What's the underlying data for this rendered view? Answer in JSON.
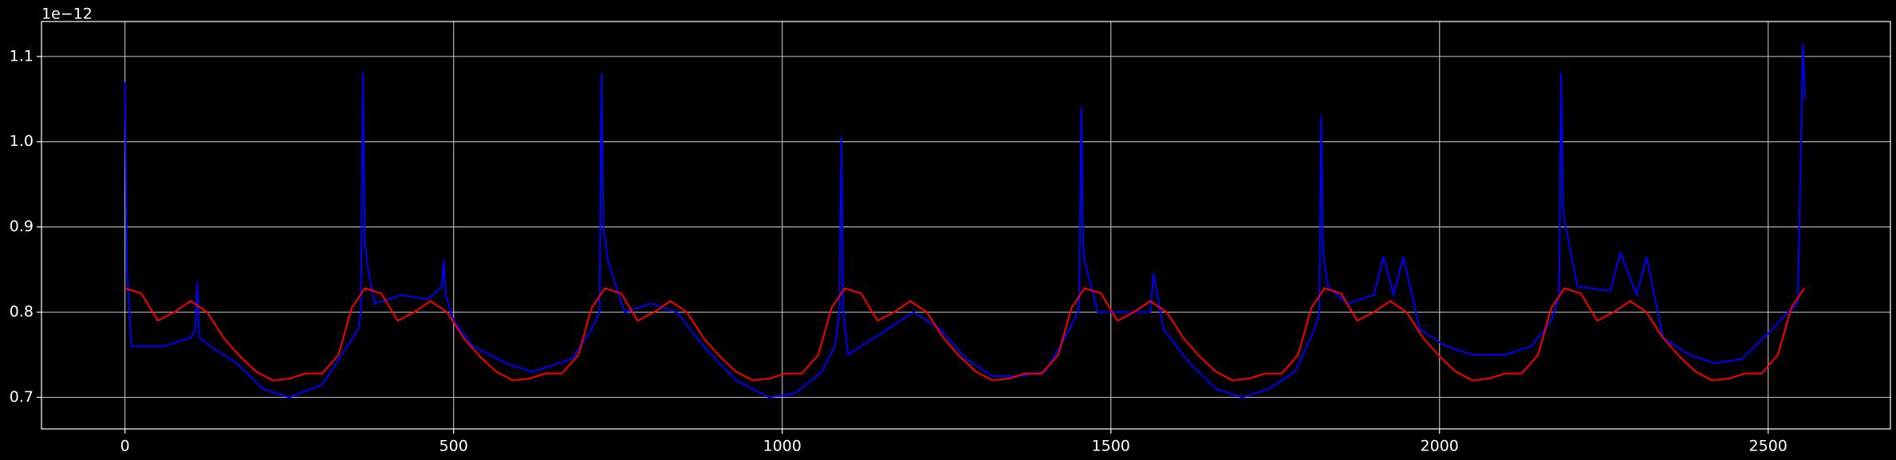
{
  "chart_data": {
    "type": "line",
    "offset_label": "1e−12",
    "xlim": [
      -127,
      2686
    ],
    "ylim": [
      0.663,
      1.141
    ],
    "xticks": [
      0,
      500,
      1000,
      1500,
      2000,
      2500
    ],
    "yticks": [
      0.7,
      0.8,
      0.9,
      {
        "value": 1,
        "label": "1.0"
      },
      1.1
    ],
    "grid": true,
    "series": [
      {
        "color": "#0000ff",
        "x": [
          0,
          3,
          10,
          60,
          100,
          107,
          110,
          113,
          130,
          170,
          210,
          250,
          300,
          330,
          355,
          359,
          362,
          365,
          370,
          380,
          420,
          460,
          482,
          485,
          488,
          500,
          530,
          580,
          620,
          680,
          710,
          722,
          725,
          728,
          735,
          760,
          800,
          840,
          880,
          930,
          980,
          1020,
          1060,
          1080,
          1087,
          1090,
          1093,
          1100,
          1130,
          1170,
          1200,
          1240,
          1280,
          1320,
          1360,
          1400,
          1430,
          1450,
          1452,
          1455,
          1458,
          1460,
          1480,
          1520,
          1560,
          1565,
          1580,
          1620,
          1660,
          1700,
          1740,
          1780,
          1810,
          1817,
          1820,
          1823,
          1830,
          1860,
          1900,
          1915,
          1930,
          1945,
          1970,
          2010,
          2050,
          2100,
          2140,
          2170,
          2182,
          2185,
          2188,
          2192,
          2210,
          2260,
          2275,
          2300,
          2315,
          2340,
          2380,
          2420,
          2460,
          2500,
          2530,
          2545,
          2553,
          2556
        ],
        "values": [
          1.07,
          0.85,
          0.76,
          0.76,
          0.77,
          0.78,
          0.835,
          0.77,
          0.76,
          0.74,
          0.71,
          0.7,
          0.715,
          0.75,
          0.78,
          0.8,
          1.08,
          0.88,
          0.85,
          0.81,
          0.82,
          0.815,
          0.83,
          0.86,
          0.82,
          0.79,
          0.76,
          0.74,
          0.73,
          0.745,
          0.78,
          0.8,
          1.08,
          0.9,
          0.86,
          0.8,
          0.81,
          0.8,
          0.76,
          0.72,
          0.7,
          0.705,
          0.73,
          0.76,
          0.8,
          1.005,
          0.8,
          0.75,
          0.765,
          0.785,
          0.8,
          0.78,
          0.745,
          0.725,
          0.725,
          0.73,
          0.77,
          0.8,
          0.82,
          1.04,
          0.88,
          0.86,
          0.8,
          0.8,
          0.8,
          0.845,
          0.78,
          0.74,
          0.71,
          0.7,
          0.71,
          0.73,
          0.78,
          0.8,
          1.03,
          0.87,
          0.83,
          0.81,
          0.82,
          0.865,
          0.82,
          0.865,
          0.78,
          0.76,
          0.75,
          0.75,
          0.76,
          0.79,
          0.82,
          1.08,
          0.92,
          0.9,
          0.83,
          0.825,
          0.87,
          0.82,
          0.865,
          0.77,
          0.75,
          0.74,
          0.745,
          0.775,
          0.8,
          0.81,
          1.115,
          1.05
        ]
      },
      {
        "color": "#ff0000",
        "x": [
          0,
          25,
          50,
          75,
          100,
          125,
          150,
          175,
          200,
          225,
          250,
          275,
          300,
          325,
          345,
          365,
          390,
          415,
          440,
          465,
          490,
          515,
          540,
          565,
          590,
          615,
          640,
          665,
          690,
          710,
          730,
          755,
          780,
          805,
          830,
          855,
          880,
          905,
          930,
          955,
          980,
          1005,
          1030,
          1055,
          1075,
          1095,
          1120,
          1145,
          1170,
          1195,
          1220,
          1245,
          1270,
          1295,
          1320,
          1345,
          1370,
          1395,
          1420,
          1440,
          1460,
          1485,
          1510,
          1535,
          1560,
          1585,
          1610,
          1635,
          1660,
          1685,
          1710,
          1735,
          1760,
          1785,
          1805,
          1825,
          1850,
          1875,
          1900,
          1925,
          1950,
          1975,
          2000,
          2025,
          2050,
          2075,
          2100,
          2125,
          2150,
          2170,
          2190,
          2215,
          2240,
          2265,
          2290,
          2315,
          2340,
          2365,
          2390,
          2415,
          2440,
          2465,
          2490,
          2515,
          2535,
          2555
        ],
        "values": [
          0.828,
          0.822,
          0.79,
          0.8,
          0.813,
          0.8,
          0.77,
          0.748,
          0.73,
          0.72,
          0.722,
          0.728,
          0.728,
          0.75,
          0.805,
          0.828,
          0.822,
          0.79,
          0.8,
          0.813,
          0.8,
          0.77,
          0.748,
          0.73,
          0.72,
          0.722,
          0.728,
          0.728,
          0.75,
          0.805,
          0.828,
          0.822,
          0.79,
          0.8,
          0.813,
          0.8,
          0.77,
          0.748,
          0.73,
          0.72,
          0.722,
          0.728,
          0.728,
          0.75,
          0.805,
          0.828,
          0.822,
          0.79,
          0.8,
          0.813,
          0.8,
          0.77,
          0.748,
          0.73,
          0.72,
          0.722,
          0.728,
          0.728,
          0.75,
          0.805,
          0.828,
          0.822,
          0.79,
          0.8,
          0.813,
          0.8,
          0.77,
          0.748,
          0.73,
          0.72,
          0.722,
          0.728,
          0.728,
          0.75,
          0.805,
          0.828,
          0.822,
          0.79,
          0.8,
          0.813,
          0.8,
          0.77,
          0.748,
          0.73,
          0.72,
          0.722,
          0.728,
          0.728,
          0.75,
          0.805,
          0.828,
          0.822,
          0.79,
          0.8,
          0.813,
          0.8,
          0.77,
          0.748,
          0.73,
          0.72,
          0.722,
          0.728,
          0.728,
          0.75,
          0.805,
          0.828
        ]
      }
    ]
  }
}
